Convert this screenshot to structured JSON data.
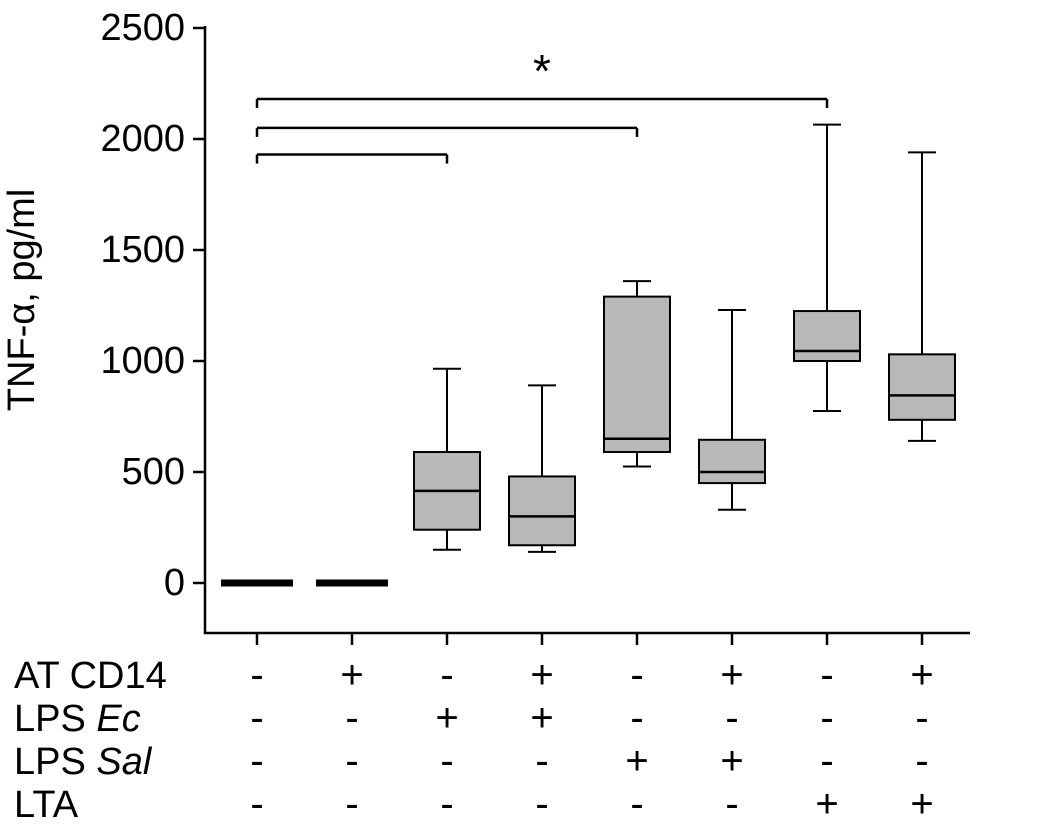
{
  "chart_data": {
    "type": "box",
    "title": "",
    "ylabel": "TNF-α, pg/ml",
    "xlabel": "",
    "ylim": [
      0,
      2500
    ],
    "yticks": [
      0,
      500,
      1000,
      1500,
      2000,
      2500
    ],
    "legend": "none",
    "grid": false,
    "colors": {
      "box_fill": "#b8b8b8",
      "stroke": "#000000"
    },
    "groups": [
      {
        "type": "flat",
        "value": 0
      },
      {
        "type": "flat",
        "value": 0
      },
      {
        "type": "box",
        "whisker_low": 150,
        "q1": 240,
        "median": 415,
        "q3": 590,
        "whisker_high": 965
      },
      {
        "type": "box",
        "whisker_low": 140,
        "q1": 170,
        "median": 300,
        "q3": 480,
        "whisker_high": 890
      },
      {
        "type": "box",
        "whisker_low": 525,
        "q1": 590,
        "median": 650,
        "q3": 1290,
        "whisker_high": 1360
      },
      {
        "type": "box",
        "whisker_low": 330,
        "q1": 450,
        "median": 500,
        "q3": 645,
        "whisker_high": 1230
      },
      {
        "type": "box",
        "whisker_low": 775,
        "q1": 1000,
        "median": 1045,
        "q3": 1225,
        "whisker_high": 2065
      },
      {
        "type": "box",
        "whisker_low": 640,
        "q1": 735,
        "median": 845,
        "q3": 1030,
        "whisker_high": 1940
      }
    ],
    "significance_brackets": [
      {
        "from_group": 1,
        "to_group": 7,
        "value": 2180,
        "label": "*"
      },
      {
        "from_group": 1,
        "to_group": 5,
        "value": 2050,
        "label": ""
      },
      {
        "from_group": 1,
        "to_group": 3,
        "value": 1930,
        "label": ""
      }
    ],
    "conditions": {
      "rows": [
        {
          "label": "AT CD14",
          "italic": "",
          "signs": [
            "-",
            "+",
            "-",
            "+",
            "-",
            "+",
            "-",
            "+"
          ]
        },
        {
          "label": "LPS ",
          "italic": "Ec",
          "signs": [
            "-",
            "-",
            "+",
            "+",
            "-",
            "-",
            "-",
            "-"
          ]
        },
        {
          "label": "LPS ",
          "italic": "Sal",
          "signs": [
            "-",
            "-",
            "-",
            "-",
            "+",
            "+",
            "-",
            "-"
          ]
        },
        {
          "label": "LTA",
          "italic": "",
          "signs": [
            "-",
            "-",
            "-",
            "-",
            "-",
            "-",
            "+",
            "+"
          ]
        }
      ]
    }
  }
}
